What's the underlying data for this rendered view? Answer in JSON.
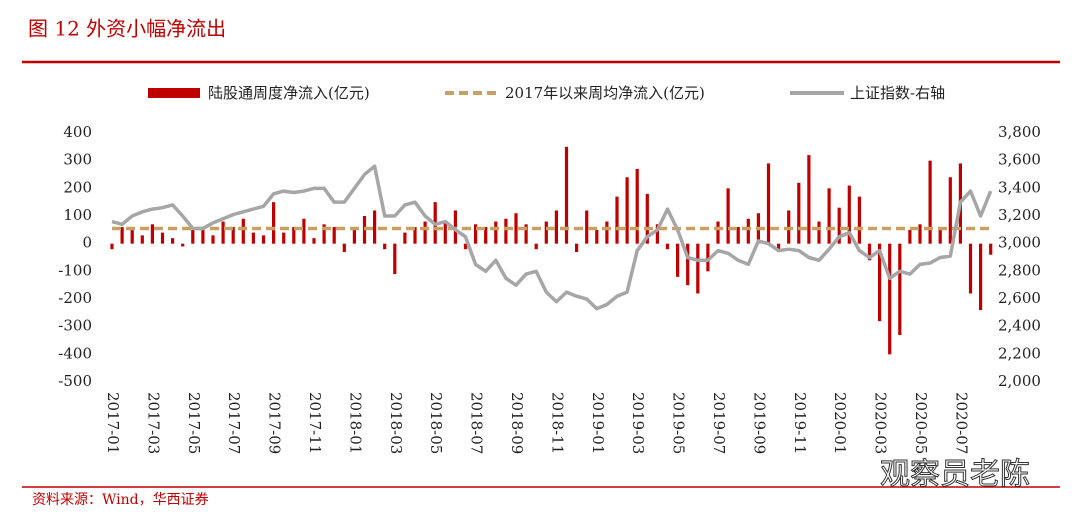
{
  "header": {
    "title": "图 12   外资小幅净流出"
  },
  "chart_data": {
    "type": "bar-line",
    "categories": [
      "2017-01",
      null,
      null,
      null,
      "2017-03",
      null,
      null,
      null,
      "2017-05",
      null,
      null,
      null,
      "2017-07",
      null,
      null,
      null,
      "2017-09",
      null,
      null,
      null,
      "2017-11",
      null,
      null,
      null,
      "2018-01",
      null,
      null,
      null,
      "2018-03",
      null,
      null,
      null,
      "2018-05",
      null,
      null,
      null,
      "2018-07",
      null,
      null,
      null,
      "2018-09",
      null,
      null,
      null,
      "2018-11",
      null,
      null,
      null,
      "2019-01",
      null,
      null,
      null,
      "2019-03",
      null,
      null,
      null,
      "2019-05",
      null,
      null,
      null,
      "2019-07",
      null,
      null,
      null,
      "2019-09",
      null,
      null,
      null,
      "2019-11",
      null,
      null,
      null,
      "2020-01",
      null,
      null,
      null,
      "2020-03",
      null,
      null,
      null,
      "2020-05",
      null,
      null,
      null,
      "2020-07",
      null,
      null,
      null
    ],
    "series": [
      {
        "name": "陆股通周度净流入(亿元)",
        "type": "bar",
        "color": "#c00000",
        "values": [
          -20,
          60,
          50,
          30,
          70,
          40,
          20,
          -10,
          50,
          60,
          30,
          80,
          60,
          90,
          40,
          30,
          150,
          40,
          60,
          90,
          20,
          70,
          60,
          -30,
          60,
          100,
          120,
          -20,
          -110,
          40,
          60,
          80,
          150,
          80,
          120,
          -20,
          70,
          60,
          80,
          90,
          110,
          70,
          -20,
          80,
          120,
          350,
          -30,
          120,
          50,
          80,
          170,
          240,
          270,
          180,
          70,
          -20,
          -120,
          -150,
          -180,
          -100,
          80,
          200,
          60,
          90,
          110,
          290,
          -30,
          120,
          220,
          320,
          80,
          200,
          130,
          210,
          170,
          -60,
          -280,
          -400,
          -330,
          50,
          70,
          300,
          50,
          240,
          290,
          -180,
          -240,
          -40
        ]
      },
      {
        "name": "2017年以来周均净流入(亿元)",
        "type": "hline",
        "color": "#c9a063",
        "value": 55
      },
      {
        "name": "上证指数-右轴",
        "type": "line",
        "axis": "y2",
        "color": "#a6a6a6",
        "values": [
          3160,
          3140,
          3200,
          3230,
          3250,
          3260,
          3280,
          3200,
          3110,
          3110,
          3150,
          3180,
          3210,
          3230,
          3250,
          3270,
          3360,
          3380,
          3370,
          3380,
          3400,
          3400,
          3300,
          3300,
          3400,
          3500,
          3560,
          3200,
          3200,
          3280,
          3300,
          3200,
          3140,
          3160,
          3100,
          3050,
          2850,
          2800,
          2880,
          2750,
          2700,
          2780,
          2800,
          2650,
          2580,
          2650,
          2620,
          2600,
          2530,
          2560,
          2620,
          2650,
          2950,
          3050,
          3100,
          3250,
          3100,
          2900,
          2880,
          2880,
          2950,
          2930,
          2880,
          2850,
          3020,
          3000,
          2950,
          2960,
          2950,
          2900,
          2880,
          2960,
          3050,
          3080,
          2950,
          2900,
          2950,
          2750,
          2800,
          2780,
          2850,
          2860,
          2900,
          2910,
          3300,
          3380,
          3200,
          3380
        ]
      }
    ],
    "ylim": [
      -500,
      400
    ],
    "yticks": [
      -500,
      -400,
      -300,
      -200,
      -100,
      0,
      100,
      200,
      300,
      400
    ],
    "y2lim": [
      2000,
      3800
    ],
    "y2ticks": [
      {
        "value": 2000,
        "label": "2,000"
      },
      {
        "value": 2200,
        "label": "2,200"
      },
      {
        "value": 2400,
        "label": "2,400"
      },
      {
        "value": 2600,
        "label": "2,600"
      },
      {
        "value": 2800,
        "label": "2,800"
      },
      {
        "value": 3000,
        "label": "3,000"
      },
      {
        "value": 3200,
        "label": "3,200"
      },
      {
        "value": 3400,
        "label": "3,400"
      },
      {
        "value": 3600,
        "label": "3,600"
      },
      {
        "value": 3800,
        "label": "3,800"
      }
    ],
    "legend": "top"
  },
  "footer": {
    "source": "资料来源：Wind，华西证券",
    "watermark": "观察员老陈"
  }
}
